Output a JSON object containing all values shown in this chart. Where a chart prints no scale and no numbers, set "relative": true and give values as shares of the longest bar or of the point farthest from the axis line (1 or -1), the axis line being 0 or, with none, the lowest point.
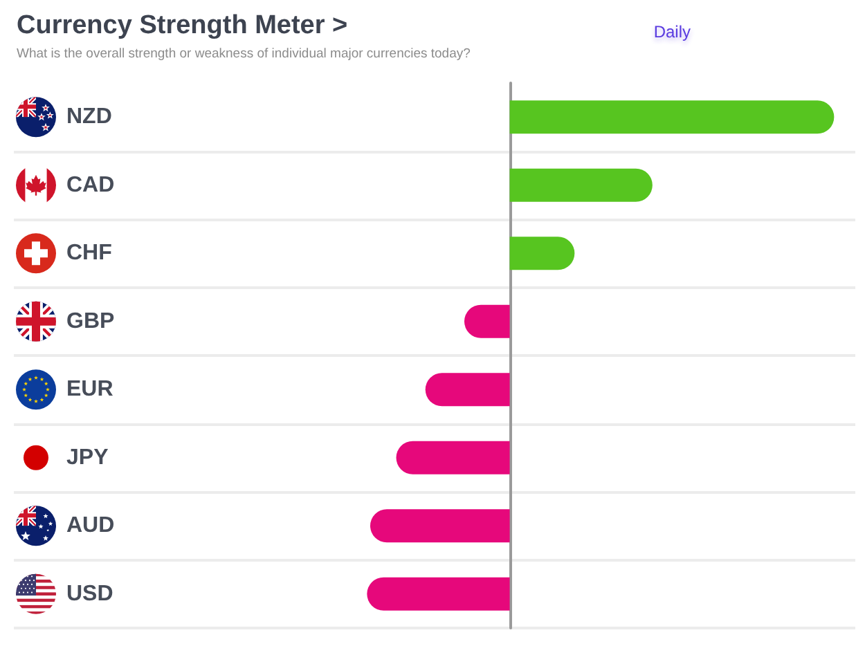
{
  "chart_data": {
    "type": "bar",
    "orientation": "horizontal",
    "relative": true,
    "title": "Currency Strength Meter >",
    "subtitle": "What is the overall strength or weakness of individual major currencies today?",
    "annotations": [
      "Daily"
    ],
    "categories": [
      "NZD",
      "CAD",
      "CHF",
      "GBP",
      "EUR",
      "JPY",
      "AUD",
      "USD"
    ],
    "values": [
      1,
      0.44,
      0.2,
      -0.14,
      -0.26,
      -0.35,
      -0.43,
      -0.44
    ],
    "colors": [
      "#57c520",
      "#57c520",
      "#57c520",
      "#e6087b",
      "#e6087b",
      "#e6087b",
      "#e6087b",
      "#e6087b"
    ],
    "grid": "y",
    "tick_labels": "y"
  }
}
